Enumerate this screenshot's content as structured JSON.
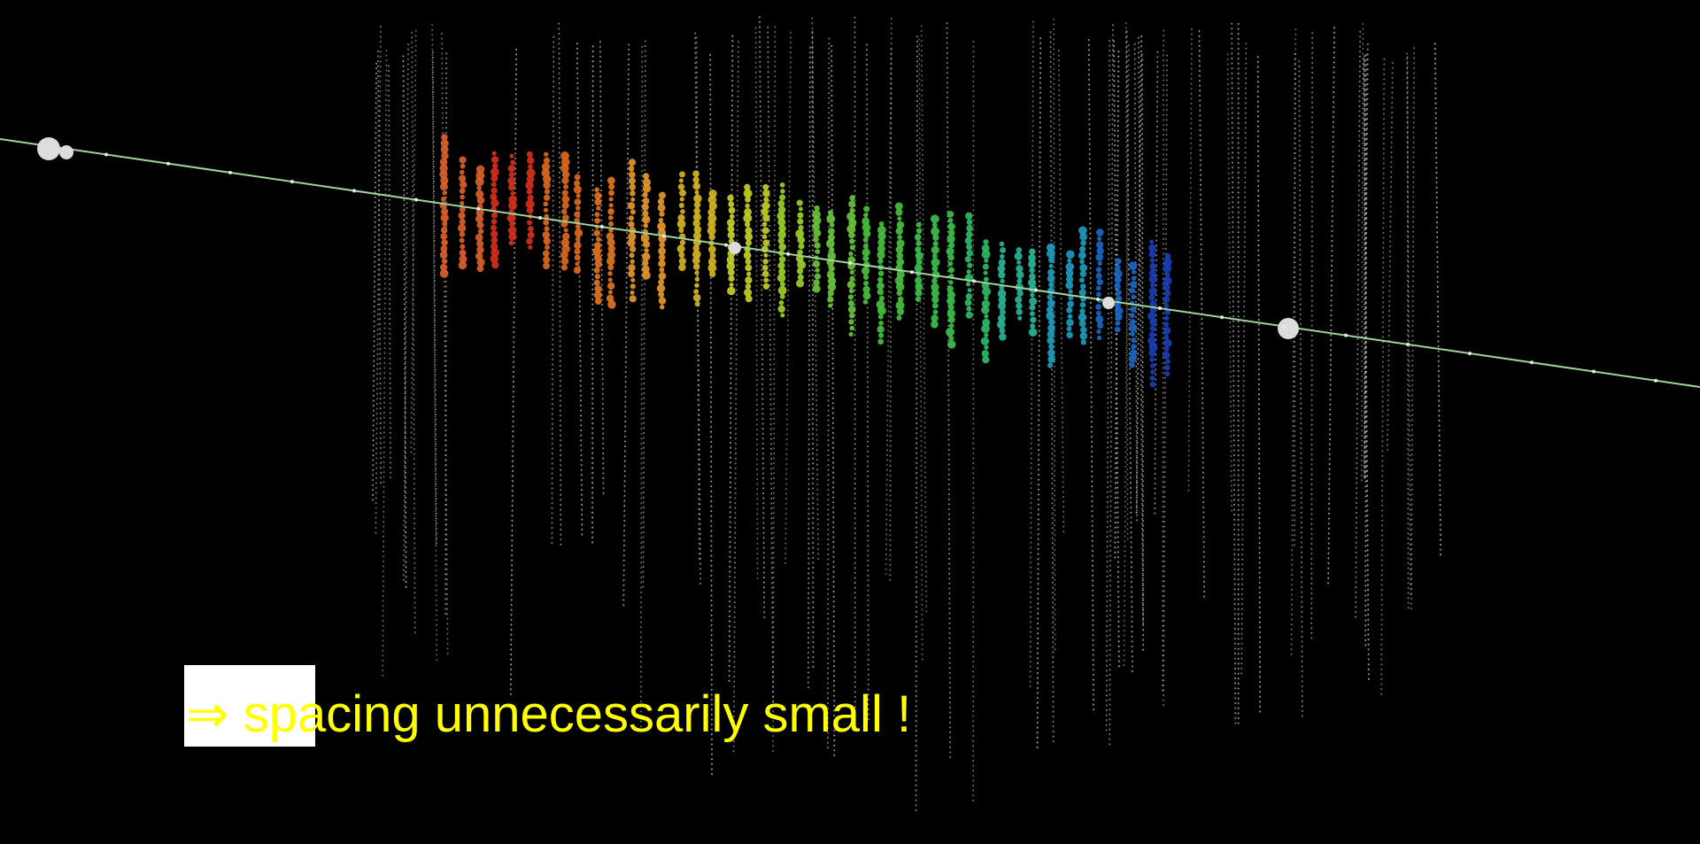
{
  "caption": {
    "text": "⇒ spacing unnecessarily small !"
  }
}
